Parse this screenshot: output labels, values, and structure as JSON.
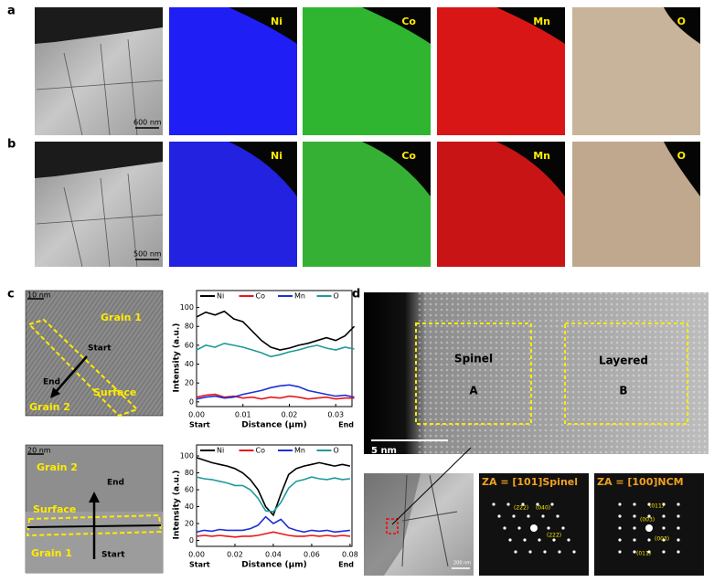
{
  "figure": {
    "rows": [
      {
        "label": "a",
        "scale_bar": "600 nm",
        "maps": [
          {
            "element": "Ni",
            "color": "#1e1ef5"
          },
          {
            "element": "Co",
            "color": "#2fb52f"
          },
          {
            "element": "Mn",
            "color": "#d91616"
          },
          {
            "element": "O",
            "color": "#c8b49b"
          }
        ]
      },
      {
        "label": "b",
        "scale_bar": "500 nm",
        "maps": [
          {
            "element": "Ni",
            "color": "#2222e0"
          },
          {
            "element": "Co",
            "color": "#35b035"
          },
          {
            "element": "Mn",
            "color": "#c81414"
          },
          {
            "element": "O",
            "color": "#bfa88e"
          }
        ]
      }
    ],
    "c": {
      "label": "c",
      "top": {
        "scale_bar": "10 nm",
        "grain_top": "Grain 1",
        "grain_bottom": "Grain 2",
        "surface": "Surface",
        "start": "Start",
        "end": "End"
      },
      "bottom": {
        "scale_bar": "20 nm",
        "grain_top": "Grain 2",
        "grain_bottom": "Grain 1",
        "surface": "Surface",
        "start": "Start",
        "end": "End"
      }
    },
    "d": {
      "label": "d",
      "scale_bar": "5 nm",
      "regions": [
        {
          "phase": "Spinel",
          "id": "A"
        },
        {
          "phase": "Layered",
          "id": "B"
        }
      ],
      "thumb_scale_bar": "200 nm",
      "fft": [
        {
          "title": "ZA = [101]Spinel",
          "spots": [
            "(2̄22)",
            "(040)",
            "(222̄)"
          ]
        },
        {
          "title": "ZA = [100]NCM",
          "spots": [
            "(011)",
            "(003)",
            "(003)",
            "(011)"
          ]
        }
      ]
    }
  },
  "chart_data": [
    {
      "type": "line",
      "xlabel": "Distance (μm)",
      "ylabel": "Intensity (a.u.)",
      "x_ends": [
        "Start",
        "End"
      ],
      "x": [
        0,
        0.002,
        0.004,
        0.006,
        0.008,
        0.01,
        0.012,
        0.014,
        0.016,
        0.018,
        0.02,
        0.022,
        0.024,
        0.026,
        0.028,
        0.03,
        0.032,
        0.034
      ],
      "xlim": [
        0,
        0.0335
      ],
      "xticks": [
        {
          "value": 0,
          "label": "0.00"
        },
        {
          "value": 0.01,
          "label": "0.01"
        },
        {
          "value": 0.02,
          "label": "0.02"
        },
        {
          "value": 0.03,
          "label": "0.03"
        }
      ],
      "ylim": [
        -5,
        118
      ],
      "yticks": [
        0,
        20,
        40,
        60,
        80,
        100
      ],
      "series": [
        {
          "name": "Ni",
          "color": "#000000",
          "values": [
            90,
            95,
            92,
            96,
            88,
            85,
            75,
            65,
            58,
            55,
            57,
            60,
            62,
            65,
            68,
            65,
            70,
            80
          ]
        },
        {
          "name": "Co",
          "color": "#e8161b",
          "values": [
            5,
            7,
            8,
            5,
            6,
            4,
            5,
            3,
            5,
            4,
            6,
            5,
            3,
            4,
            5,
            3,
            4,
            4
          ]
        },
        {
          "name": "Mn",
          "color": "#1f2fd6",
          "values": [
            3,
            5,
            6,
            4,
            5,
            8,
            10,
            12,
            15,
            17,
            18,
            16,
            12,
            10,
            8,
            6,
            7,
            5
          ]
        },
        {
          "name": "O",
          "color": "#1f9a9a",
          "values": [
            55,
            60,
            58,
            62,
            60,
            58,
            55,
            52,
            48,
            50,
            53,
            55,
            58,
            60,
            57,
            55,
            58,
            56
          ]
        }
      ]
    },
    {
      "type": "line",
      "xlabel": "Distance (μm)",
      "ylabel": "Intensity (a.u.)",
      "x_ends": [
        "Start",
        "End"
      ],
      "x": [
        0,
        0.004,
        0.008,
        0.012,
        0.016,
        0.02,
        0.024,
        0.028,
        0.032,
        0.036,
        0.04,
        0.044,
        0.048,
        0.052,
        0.056,
        0.06,
        0.064,
        0.068,
        0.072,
        0.076,
        0.08
      ],
      "xlim": [
        0,
        0.081
      ],
      "xticks": [
        {
          "value": 0,
          "label": "0.00"
        },
        {
          "value": 0.02,
          "label": "0.02"
        },
        {
          "value": 0.04,
          "label": "0.04"
        },
        {
          "value": 0.06,
          "label": "0.06"
        },
        {
          "value": 0.08,
          "label": "0.08"
        }
      ],
      "ylim": [
        -7,
        113
      ],
      "yticks": [
        0,
        20,
        40,
        60,
        80,
        100
      ],
      "series": [
        {
          "name": "Ni",
          "color": "#000000",
          "values": [
            98,
            95,
            92,
            90,
            88,
            85,
            80,
            72,
            60,
            40,
            30,
            55,
            78,
            85,
            88,
            90,
            92,
            90,
            88,
            90,
            88
          ]
        },
        {
          "name": "Co",
          "color": "#e8161b",
          "values": [
            5,
            6,
            5,
            6,
            5,
            4,
            5,
            5,
            6,
            8,
            10,
            8,
            6,
            5,
            5,
            6,
            5,
            6,
            5,
            6,
            5
          ]
        },
        {
          "name": "Mn",
          "color": "#1f2fd6",
          "values": [
            10,
            12,
            11,
            13,
            12,
            12,
            12,
            14,
            18,
            28,
            20,
            25,
            15,
            12,
            10,
            12,
            11,
            12,
            10,
            11,
            12
          ]
        },
        {
          "name": "O",
          "color": "#1f9a9a",
          "values": [
            75,
            73,
            72,
            70,
            68,
            65,
            65,
            60,
            50,
            35,
            34,
            45,
            62,
            70,
            72,
            75,
            73,
            72,
            74,
            72,
            73
          ]
        }
      ]
    }
  ]
}
